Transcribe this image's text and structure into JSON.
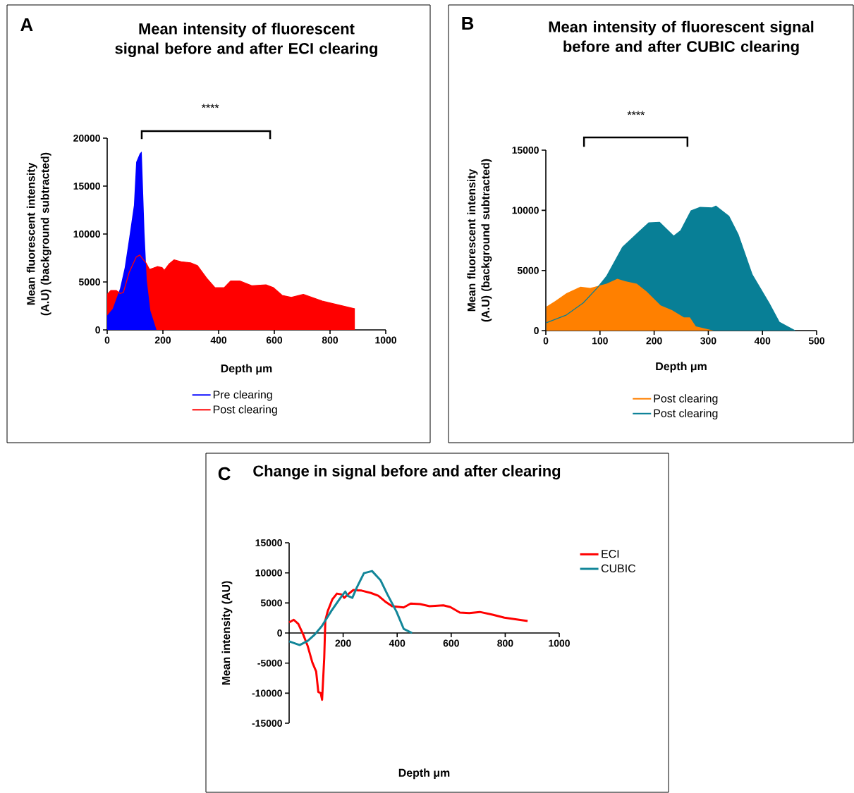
{
  "chart_data": [
    {
      "type": "area",
      "title": "Mean intensity of fluorescent signal before and after ECI clearing",
      "xlabel": "Depth μm",
      "ylabel": "Mean fluorescent intensity (A.U) (background subtracted)",
      "annotations": [
        "A",
        "****"
      ],
      "xlim": [
        0,
        1000
      ],
      "ylim": [
        0,
        20000
      ],
      "xticks": [
        0,
        200,
        400,
        600,
        800,
        1000
      ],
      "yticks": [
        0,
        5000,
        10000,
        15000,
        20000
      ],
      "legend": "bottom",
      "series": [
        {
          "name": "Pre clearing",
          "color": "#0000ff",
          "x": [
            0,
            20,
            46,
            63,
            79,
            96,
            104,
            117,
            124,
            134,
            142,
            155,
            177
          ],
          "values": [
            1500,
            2200,
            4300,
            6500,
            9600,
            13000,
            17500,
            18400,
            18600,
            10100,
            5200,
            2000,
            0
          ]
        },
        {
          "name": "Post clearing",
          "color": "#ff0000",
          "x": [
            0,
            13,
            33,
            46,
            58,
            79,
            104,
            117,
            129,
            139,
            152,
            180,
            197,
            205,
            223,
            240,
            266,
            299,
            324,
            357,
            387,
            420,
            443,
            476,
            519,
            570,
            597,
            628,
            661,
            704,
            772,
            889
          ],
          "values": [
            3700,
            4100,
            4100,
            3800,
            3900,
            6000,
            7600,
            7800,
            7350,
            7000,
            6300,
            6600,
            6500,
            6200,
            6900,
            7300,
            7100,
            7000,
            6700,
            5400,
            4400,
            4400,
            5100,
            5100,
            4600,
            4700,
            4400,
            3600,
            3400,
            3700,
            3000,
            2200
          ]
        }
      ]
    },
    {
      "type": "area",
      "title": "Mean intensity of fluorescent signal before and after CUBIC clearing",
      "xlabel": "Depth μm",
      "ylabel": "Mean fluorescent intensity (A.U) (background subtracted)",
      "annotations": [
        "B",
        "****"
      ],
      "xlim": [
        0,
        500
      ],
      "ylim": [
        0,
        15000
      ],
      "xticks": [
        0,
        100,
        200,
        300,
        400,
        500
      ],
      "yticks": [
        0,
        5000,
        10000,
        15000
      ],
      "legend": "bottom",
      "series": [
        {
          "name": "Post clearing",
          "color": "#ff8000",
          "x": [
            1,
            17,
            38,
            64,
            82,
            112,
            132,
            147,
            168,
            186,
            212,
            233,
            255,
            266,
            277,
            310
          ],
          "values": [
            2000,
            2450,
            3100,
            3650,
            3550,
            3900,
            4300,
            4100,
            3900,
            3250,
            2100,
            1700,
            1100,
            1100,
            350,
            0
          ]
        },
        {
          "name": "Post clearing",
          "color": "#087f96",
          "x": [
            1,
            38,
            69,
            95,
            112,
            142,
            173,
            190,
            210,
            236,
            249,
            268,
            285,
            307,
            314,
            338,
            355,
            381,
            412,
            431,
            460
          ],
          "values": [
            650,
            1300,
            2300,
            3550,
            4500,
            6950,
            8250,
            8950,
            9000,
            7850,
            8300,
            9950,
            10250,
            10200,
            10350,
            9500,
            8000,
            4650,
            2300,
            700,
            0
          ]
        }
      ]
    },
    {
      "type": "line",
      "title": "Change in signal before and after clearing",
      "xlabel": "Depth μm",
      "ylabel": "Mean intensity (AU)",
      "annotations": [
        "C"
      ],
      "xlim": [
        0,
        1000
      ],
      "ylim": [
        -15000,
        15000
      ],
      "xticks": [
        200,
        400,
        600,
        800,
        1000
      ],
      "yticks": [
        -15000,
        -10000,
        -5000,
        0,
        5000,
        10000,
        15000
      ],
      "legend": "right",
      "series": [
        {
          "name": "ECI",
          "color": "#ff0000",
          "x": [
            0,
            17,
            34,
            52,
            69,
            86,
            100,
            108,
            117,
            122,
            130,
            134,
            143,
            160,
            177,
            195,
            204,
            221,
            238,
            268,
            303,
            330,
            355,
            381,
            424,
            450,
            485,
            520,
            571,
            597,
            632,
            667,
            706,
            753,
            797,
            883
          ],
          "values": [
            1750,
            2200,
            1500,
            -250,
            -2200,
            -4900,
            -6400,
            -9800,
            -10000,
            -11100,
            -4100,
            2100,
            3650,
            5600,
            6550,
            6400,
            5850,
            6550,
            7150,
            7050,
            6650,
            6200,
            5250,
            4450,
            4250,
            4900,
            4800,
            4450,
            4600,
            4300,
            3400,
            3300,
            3500,
            3050,
            2550,
            2000
          ]
        },
        {
          "name": "CUBIC",
          "color": "#128699",
          "x": [
            0,
            39,
            69,
            95,
            121,
            156,
            190,
            208,
            216,
            234,
            251,
            277,
            307,
            338,
            364,
            398,
            424,
            455
          ],
          "values": [
            -1400,
            -2000,
            -1300,
            -250,
            1150,
            3650,
            5850,
            6900,
            6200,
            5850,
            7600,
            9950,
            10300,
            8800,
            6400,
            3500,
            700,
            0
          ]
        }
      ]
    }
  ]
}
